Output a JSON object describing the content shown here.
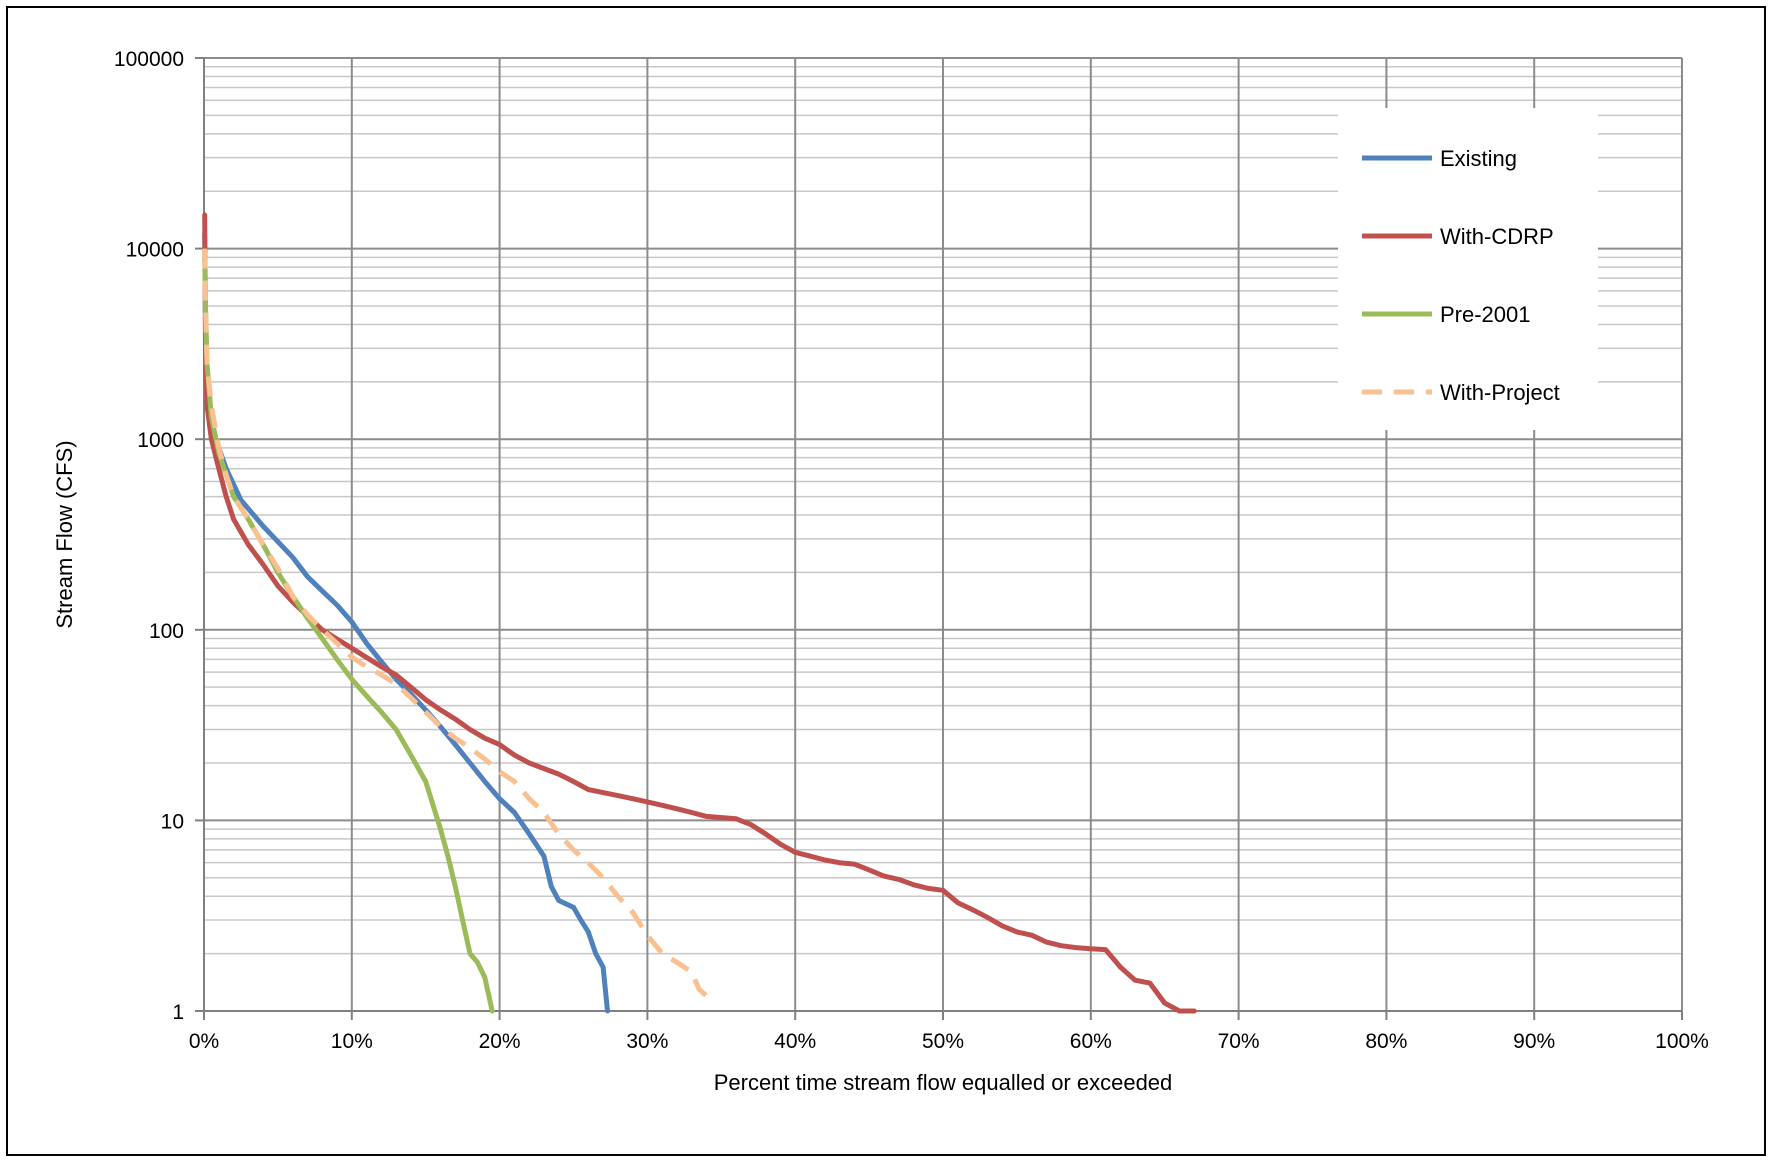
{
  "chart_data": {
    "type": "line",
    "title": "",
    "xlabel": "Percent time stream flow equalled or exceeded",
    "ylabel": "Stream Flow (CFS)",
    "x_scale": "linear",
    "y_scale": "log",
    "xlim": [
      0,
      100
    ],
    "ylim": [
      1,
      100000
    ],
    "x_ticks": [
      0,
      10,
      20,
      30,
      40,
      50,
      60,
      70,
      80,
      90,
      100
    ],
    "x_tick_labels": [
      "0%",
      "10%",
      "20%",
      "30%",
      "40%",
      "50%",
      "60%",
      "70%",
      "80%",
      "90%",
      "100%"
    ],
    "y_ticks": [
      1,
      10,
      100,
      1000,
      10000,
      100000
    ],
    "y_tick_labels": [
      "1",
      "10",
      "100",
      "1000",
      "10000",
      "100000"
    ],
    "grid": true,
    "legend_position": "top-right",
    "series": [
      {
        "name": "Existing",
        "color": "#4f81bd",
        "dash": "solid",
        "points": [
          [
            0.05,
            12000
          ],
          [
            0.1,
            4000
          ],
          [
            0.2,
            2000
          ],
          [
            0.4,
            1400
          ],
          [
            0.8,
            1000
          ],
          [
            1.5,
            700
          ],
          [
            2.5,
            480
          ],
          [
            4,
            350
          ],
          [
            5,
            290
          ],
          [
            6,
            240
          ],
          [
            7,
            190
          ],
          [
            8,
            160
          ],
          [
            9,
            135
          ],
          [
            10,
            110
          ],
          [
            11,
            85
          ],
          [
            12,
            68
          ],
          [
            13,
            55
          ],
          [
            14,
            46
          ],
          [
            15,
            38
          ],
          [
            16,
            31
          ],
          [
            17,
            25
          ],
          [
            18,
            20
          ],
          [
            19,
            16
          ],
          [
            20,
            13
          ],
          [
            21,
            11
          ],
          [
            22,
            8.5
          ],
          [
            23,
            6.5
          ],
          [
            23.5,
            4.5
          ],
          [
            24,
            3.8
          ],
          [
            25,
            3.5
          ],
          [
            25.5,
            3.0
          ],
          [
            26,
            2.6
          ],
          [
            26.5,
            2.0
          ],
          [
            27,
            1.7
          ],
          [
            27.3,
            1.0
          ]
        ]
      },
      {
        "name": "With-CDRP",
        "color": "#c0504d",
        "dash": "solid",
        "points": [
          [
            0.05,
            15000
          ],
          [
            0.1,
            3000
          ],
          [
            0.2,
            1500
          ],
          [
            0.5,
            1000
          ],
          [
            1,
            700
          ],
          [
            1.5,
            500
          ],
          [
            2,
            380
          ],
          [
            3,
            280
          ],
          [
            4,
            220
          ],
          [
            5,
            170
          ],
          [
            6,
            140
          ],
          [
            8,
            100
          ],
          [
            10,
            80
          ],
          [
            12,
            64
          ],
          [
            13,
            58
          ],
          [
            14,
            50
          ],
          [
            15,
            43
          ],
          [
            16,
            38
          ],
          [
            17,
            34
          ],
          [
            18,
            30
          ],
          [
            19,
            27
          ],
          [
            20,
            25
          ],
          [
            21,
            22
          ],
          [
            22,
            20
          ],
          [
            24,
            17.5
          ],
          [
            25,
            16
          ],
          [
            26,
            14.5
          ],
          [
            28,
            13.5
          ],
          [
            29,
            13
          ],
          [
            30,
            12.5
          ],
          [
            31,
            12
          ],
          [
            32,
            11.5
          ],
          [
            33,
            11
          ],
          [
            34,
            10.5
          ],
          [
            36,
            10.2
          ],
          [
            37,
            9.5
          ],
          [
            38,
            8.5
          ],
          [
            39,
            7.5
          ],
          [
            40,
            6.8
          ],
          [
            41,
            6.5
          ],
          [
            42,
            6.2
          ],
          [
            43,
            6.0
          ],
          [
            44,
            5.9
          ],
          [
            45,
            5.5
          ],
          [
            46,
            5.1
          ],
          [
            47,
            4.9
          ],
          [
            48,
            4.6
          ],
          [
            49,
            4.4
          ],
          [
            50,
            4.3
          ],
          [
            51,
            3.7
          ],
          [
            52,
            3.4
          ],
          [
            53,
            3.1
          ],
          [
            54,
            2.8
          ],
          [
            55,
            2.6
          ],
          [
            56,
            2.5
          ],
          [
            57,
            2.3
          ],
          [
            58,
            2.2
          ],
          [
            59,
            2.15
          ],
          [
            60,
            2.12
          ],
          [
            61,
            2.1
          ],
          [
            62,
            1.7
          ],
          [
            63,
            1.45
          ],
          [
            64,
            1.4
          ],
          [
            65,
            1.1
          ],
          [
            66,
            1.0
          ],
          [
            67,
            1.0
          ]
        ]
      },
      {
        "name": "Pre-2001",
        "color": "#9bbb59",
        "dash": "solid",
        "points": [
          [
            0.05,
            9000
          ],
          [
            0.1,
            5000
          ],
          [
            0.2,
            2500
          ],
          [
            0.5,
            1300
          ],
          [
            1,
            850
          ],
          [
            1.5,
            650
          ],
          [
            2,
            500
          ],
          [
            3,
            380
          ],
          [
            4,
            280
          ],
          [
            5,
            200
          ],
          [
            6,
            150
          ],
          [
            7,
            115
          ],
          [
            8,
            90
          ],
          [
            9,
            70
          ],
          [
            10,
            55
          ],
          [
            11,
            45
          ],
          [
            12,
            37
          ],
          [
            13,
            30
          ],
          [
            14,
            22
          ],
          [
            15,
            16
          ],
          [
            15.5,
            12
          ],
          [
            16,
            9
          ],
          [
            16.5,
            6.5
          ],
          [
            17,
            4.5
          ],
          [
            17.5,
            3.0
          ],
          [
            18,
            2.0
          ],
          [
            18.5,
            1.8
          ],
          [
            19,
            1.5
          ],
          [
            19.5,
            1.0
          ]
        ]
      },
      {
        "name": "With-Project",
        "color": "#fac090",
        "dash": "dashed",
        "points": [
          [
            0.05,
            10000
          ],
          [
            0.1,
            5000
          ],
          [
            0.2,
            2500
          ],
          [
            0.5,
            1500
          ],
          [
            1,
            900
          ],
          [
            1.5,
            650
          ],
          [
            2,
            500
          ],
          [
            3,
            380
          ],
          [
            4,
            280
          ],
          [
            5,
            210
          ],
          [
            6,
            150
          ],
          [
            7,
            120
          ],
          [
            8,
            100
          ],
          [
            9,
            85
          ],
          [
            10,
            72
          ],
          [
            11,
            64
          ],
          [
            12,
            58
          ],
          [
            13,
            52
          ],
          [
            14,
            44
          ],
          [
            15,
            37
          ],
          [
            16,
            31
          ],
          [
            17,
            27
          ],
          [
            18,
            24
          ],
          [
            19,
            21
          ],
          [
            20,
            18
          ],
          [
            21,
            16
          ],
          [
            22,
            13
          ],
          [
            23,
            11
          ],
          [
            24,
            8.5
          ],
          [
            25,
            7
          ],
          [
            26,
            6
          ],
          [
            27,
            5
          ],
          [
            28,
            4
          ],
          [
            29,
            3.3
          ],
          [
            30,
            2.5
          ],
          [
            31,
            2.0
          ],
          [
            32,
            1.8
          ],
          [
            33,
            1.6
          ],
          [
            33.5,
            1.3
          ],
          [
            34,
            1.2
          ]
        ]
      }
    ]
  }
}
